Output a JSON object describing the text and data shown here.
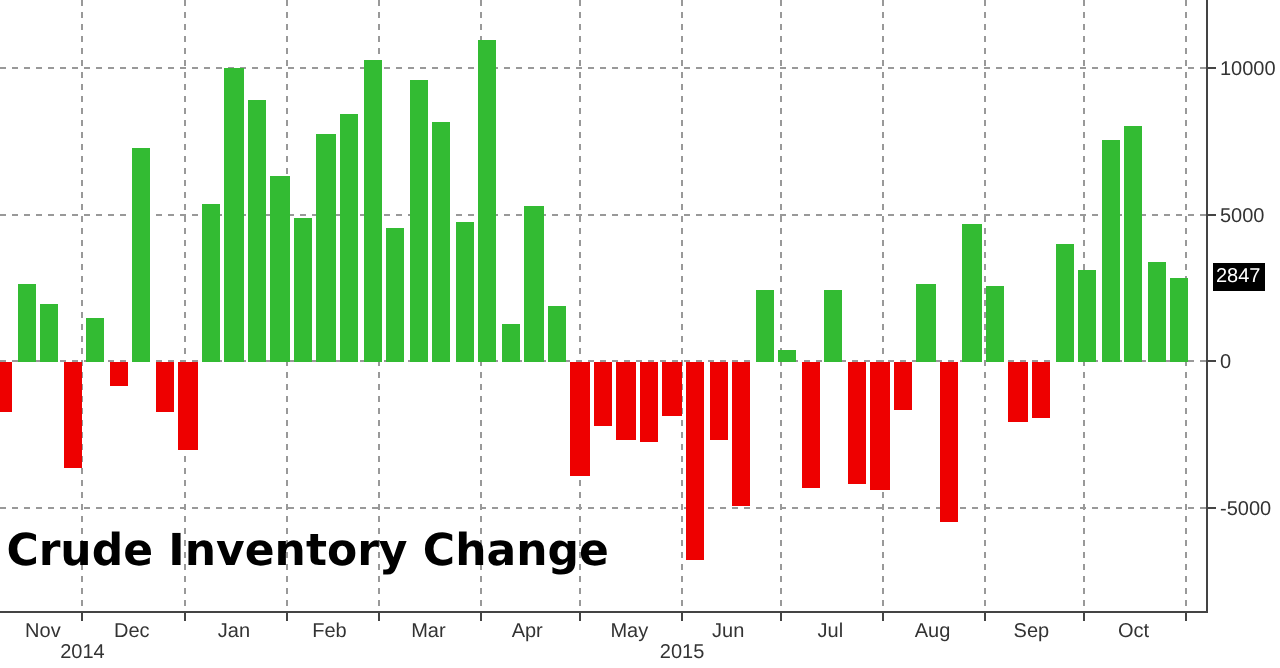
{
  "chart_data": {
    "type": "bar",
    "title": "Crude Inventory Change",
    "x": [
      "2014-11-07",
      "2014-11-14",
      "2014-11-21",
      "2014-11-28",
      "2014-12-05",
      "2014-12-12",
      "2014-12-19",
      "2014-12-26",
      "2015-01-02",
      "2015-01-09",
      "2015-01-16",
      "2015-01-23",
      "2015-01-30",
      "2015-02-06",
      "2015-02-13",
      "2015-02-20",
      "2015-02-27",
      "2015-03-06",
      "2015-03-13",
      "2015-03-20",
      "2015-03-27",
      "2015-04-03",
      "2015-04-10",
      "2015-04-17",
      "2015-04-24",
      "2015-05-01",
      "2015-05-08",
      "2015-05-15",
      "2015-05-22",
      "2015-05-29",
      "2015-06-05",
      "2015-06-12",
      "2015-06-19",
      "2015-06-26",
      "2015-07-03",
      "2015-07-10",
      "2015-07-17",
      "2015-07-24",
      "2015-07-31",
      "2015-08-07",
      "2015-08-14",
      "2015-08-21",
      "2015-08-28",
      "2015-09-04",
      "2015-09-11",
      "2015-09-18",
      "2015-09-25",
      "2015-10-02",
      "2015-10-09",
      "2015-10-16",
      "2015-10-23",
      "2015-10-30"
    ],
    "values": [
      -1730,
      2650,
      1950,
      -3650,
      1470,
      -820,
      7270,
      -1730,
      -3020,
      5380,
      10020,
      8870,
      6330,
      4870,
      7710,
      8420,
      10290,
      4510,
      9580,
      8150,
      4750,
      10910,
      1290,
      5290,
      1910,
      -3870,
      -2180,
      -2670,
      -2760,
      -1890,
      -6760,
      -2670,
      -4890,
      2400,
      380,
      -4310,
      2440,
      -4180,
      -4360,
      -1640,
      2650,
      -5440,
      4690,
      2580,
      -2090,
      -1910,
      3980,
      3090,
      7530,
      8020,
      3380,
      2847
    ],
    "colors": [
      "#ee0000",
      "#33bb33",
      "#33bb33",
      "#ee0000",
      "#33bb33",
      "#ee0000",
      "#33bb33",
      "#ee0000",
      "#ee0000",
      "#33bb33",
      "#33bb33",
      "#33bb33",
      "#33bb33",
      "#33bb33",
      "#33bb33",
      "#33bb33",
      "#33bb33",
      "#33bb33",
      "#33bb33",
      "#33bb33",
      "#33bb33",
      "#33bb33",
      "#33bb33",
      "#33bb33",
      "#33bb33",
      "#ee0000",
      "#ee0000",
      "#ee0000",
      "#ee0000",
      "#ee0000",
      "#ee0000",
      "#ee0000",
      "#ee0000",
      "#33bb33",
      "#33bb33",
      "#ee0000",
      "#33bb33",
      "#ee0000",
      "#ee0000",
      "#ee0000",
      "#33bb33",
      "#ee0000",
      "#33bb33",
      "#33bb33",
      "#ee0000",
      "#ee0000",
      "#33bb33",
      "#33bb33",
      "#33bb33",
      "#33bb33",
      "#33bb33",
      "#33bb33"
    ],
    "xlim": [
      "2014-11-06",
      "2015-11-07"
    ],
    "xticks": [
      {
        "value": "2014-11-19",
        "label": "Nov"
      },
      {
        "value": "2014-12-16",
        "label": "Dec"
      },
      {
        "value": "2015-01-16",
        "label": "Jan"
      },
      {
        "value": "2015-02-14",
        "label": "Feb"
      },
      {
        "value": "2015-03-16",
        "label": "Mar"
      },
      {
        "value": "2015-04-15",
        "label": "Apr"
      },
      {
        "value": "2015-05-16",
        "label": "May"
      },
      {
        "value": "2015-06-15",
        "label": "Jun"
      },
      {
        "value": "2015-07-16",
        "label": "Jul"
      },
      {
        "value": "2015-08-16",
        "label": "Aug"
      },
      {
        "value": "2015-09-15",
        "label": "Sep"
      },
      {
        "value": "2015-10-16",
        "label": "Oct"
      }
    ],
    "x2lim": [
      "2014-11-06",
      "2015-11-07"
    ],
    "x2ticks": [
      {
        "value": "2014-12-01",
        "label": "2014"
      },
      {
        "value": "2015-06-01",
        "label": "2015"
      }
    ],
    "ylim": [
      -8500,
      12300
    ],
    "yticks": [
      -5000,
      0,
      5000,
      10000
    ],
    "grid": true,
    "annotations": [
      {
        "text": "2847",
        "y": 2847
      }
    ]
  }
}
